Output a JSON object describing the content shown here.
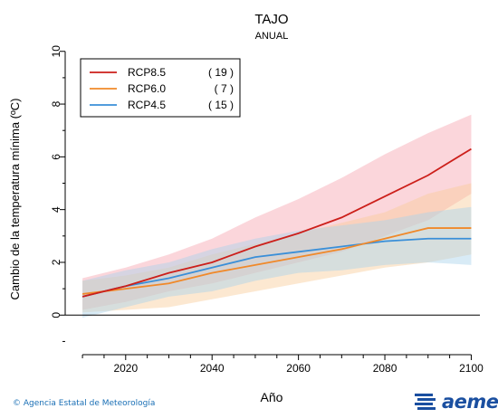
{
  "chart_data": {
    "type": "line",
    "title": "TAJO",
    "subtitle": "ANUAL",
    "xlabel": "Año",
    "ylabel": "Cambio de la temperatura mínima (ºC)",
    "xlim": [
      2006,
      2102
    ],
    "ylim": [
      -1.5,
      10.3
    ],
    "xticks": [
      2020,
      2040,
      2060,
      2080,
      2100
    ],
    "yticks": [
      0,
      2,
      4,
      6,
      8,
      10
    ],
    "zero_line": true,
    "legend_position": "top-left",
    "x": [
      2010,
      2020,
      2030,
      2040,
      2050,
      2060,
      2070,
      2080,
      2090,
      2100
    ],
    "series": [
      {
        "name": "RCP8.5",
        "count": "( 19 )",
        "color": "#cc1f1a",
        "band_color": "#f6a5b0",
        "values": [
          0.7,
          1.1,
          1.6,
          2.0,
          2.6,
          3.1,
          3.7,
          4.5,
          5.3,
          6.3
        ],
        "lower": [
          0.2,
          0.5,
          0.9,
          1.2,
          1.6,
          2.0,
          2.4,
          3.0,
          3.6,
          4.6
        ],
        "upper": [
          1.4,
          1.8,
          2.3,
          2.9,
          3.7,
          4.4,
          5.2,
          6.1,
          6.9,
          7.6
        ]
      },
      {
        "name": "RCP6.0",
        "count": "(  7 )",
        "color": "#f0892a",
        "band_color": "#f9cc99",
        "values": [
          0.8,
          1.0,
          1.2,
          1.6,
          1.9,
          2.2,
          2.5,
          2.9,
          3.3,
          3.3
        ],
        "lower": [
          0.1,
          0.2,
          0.3,
          0.6,
          0.9,
          1.2,
          1.5,
          1.8,
          2.0,
          2.3
        ],
        "upper": [
          1.3,
          1.5,
          1.8,
          2.3,
          2.7,
          3.1,
          3.5,
          3.9,
          4.6,
          5.0
        ]
      },
      {
        "name": "RCP4.5",
        "count": "( 15 )",
        "color": "#3a8fd8",
        "band_color": "#a9d3ec",
        "values": [
          0.7,
          1.1,
          1.4,
          1.8,
          2.2,
          2.4,
          2.6,
          2.8,
          2.9,
          2.9
        ],
        "lower": [
          -0.1,
          0.3,
          0.7,
          0.9,
          1.3,
          1.6,
          1.7,
          1.9,
          2.0,
          1.9
        ],
        "upper": [
          1.3,
          1.7,
          2.0,
          2.5,
          2.9,
          3.2,
          3.4,
          3.6,
          3.9,
          4.1
        ]
      }
    ]
  },
  "footer": {
    "credit": "Agencia Estatal de Meteorología",
    "brand": "aemet"
  }
}
